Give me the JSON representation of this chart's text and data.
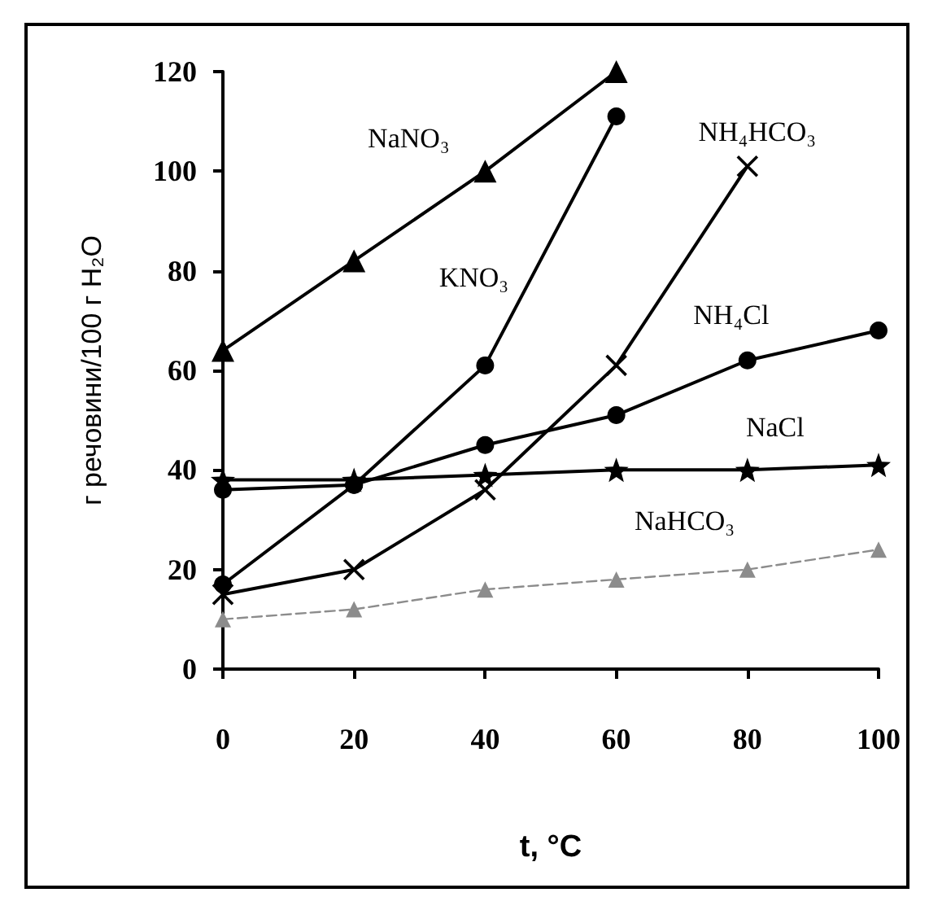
{
  "chart_data": {
    "type": "line",
    "xlabel": "t, °C",
    "ylabel": "г речовини/100 г H₂O",
    "x": [
      0,
      20,
      40,
      60,
      80,
      100
    ],
    "series": [
      {
        "name": "NaNO₃",
        "color": "#000000",
        "marker": "triangle",
        "x": [
          0,
          20,
          40,
          60
        ],
        "values": [
          64,
          82,
          100,
          120
        ]
      },
      {
        "name": "KNO₃",
        "color": "#000000",
        "marker": "circle",
        "x": [
          0,
          20,
          40,
          60
        ],
        "values": [
          17,
          37,
          61,
          111
        ]
      },
      {
        "name": "NH₄HCO₃",
        "color": "#000000",
        "marker": "cross",
        "x": [
          0,
          20,
          40,
          60,
          80
        ],
        "values": [
          15,
          20,
          36,
          61,
          101
        ]
      },
      {
        "name": "NH₄Cl",
        "color": "#000000",
        "marker": "circle",
        "values": [
          36,
          37,
          45,
          51,
          62,
          68
        ]
      },
      {
        "name": "NaCl",
        "color": "#000000",
        "marker": "star",
        "values": [
          38,
          38,
          39,
          40,
          40,
          41
        ]
      },
      {
        "name": "NaHCO₃",
        "color": "#8c8c8c",
        "marker": "triangle",
        "line_style": "dashed",
        "values": [
          10,
          12,
          16,
          18,
          20,
          24
        ]
      }
    ],
    "xlim": [
      0,
      100
    ],
    "xticks": [
      0,
      20,
      40,
      60,
      80,
      100
    ],
    "ylim": [
      0,
      120
    ],
    "yticks": [
      0,
      20,
      40,
      60,
      80,
      100,
      120
    ],
    "grid": false,
    "legend": false
  }
}
